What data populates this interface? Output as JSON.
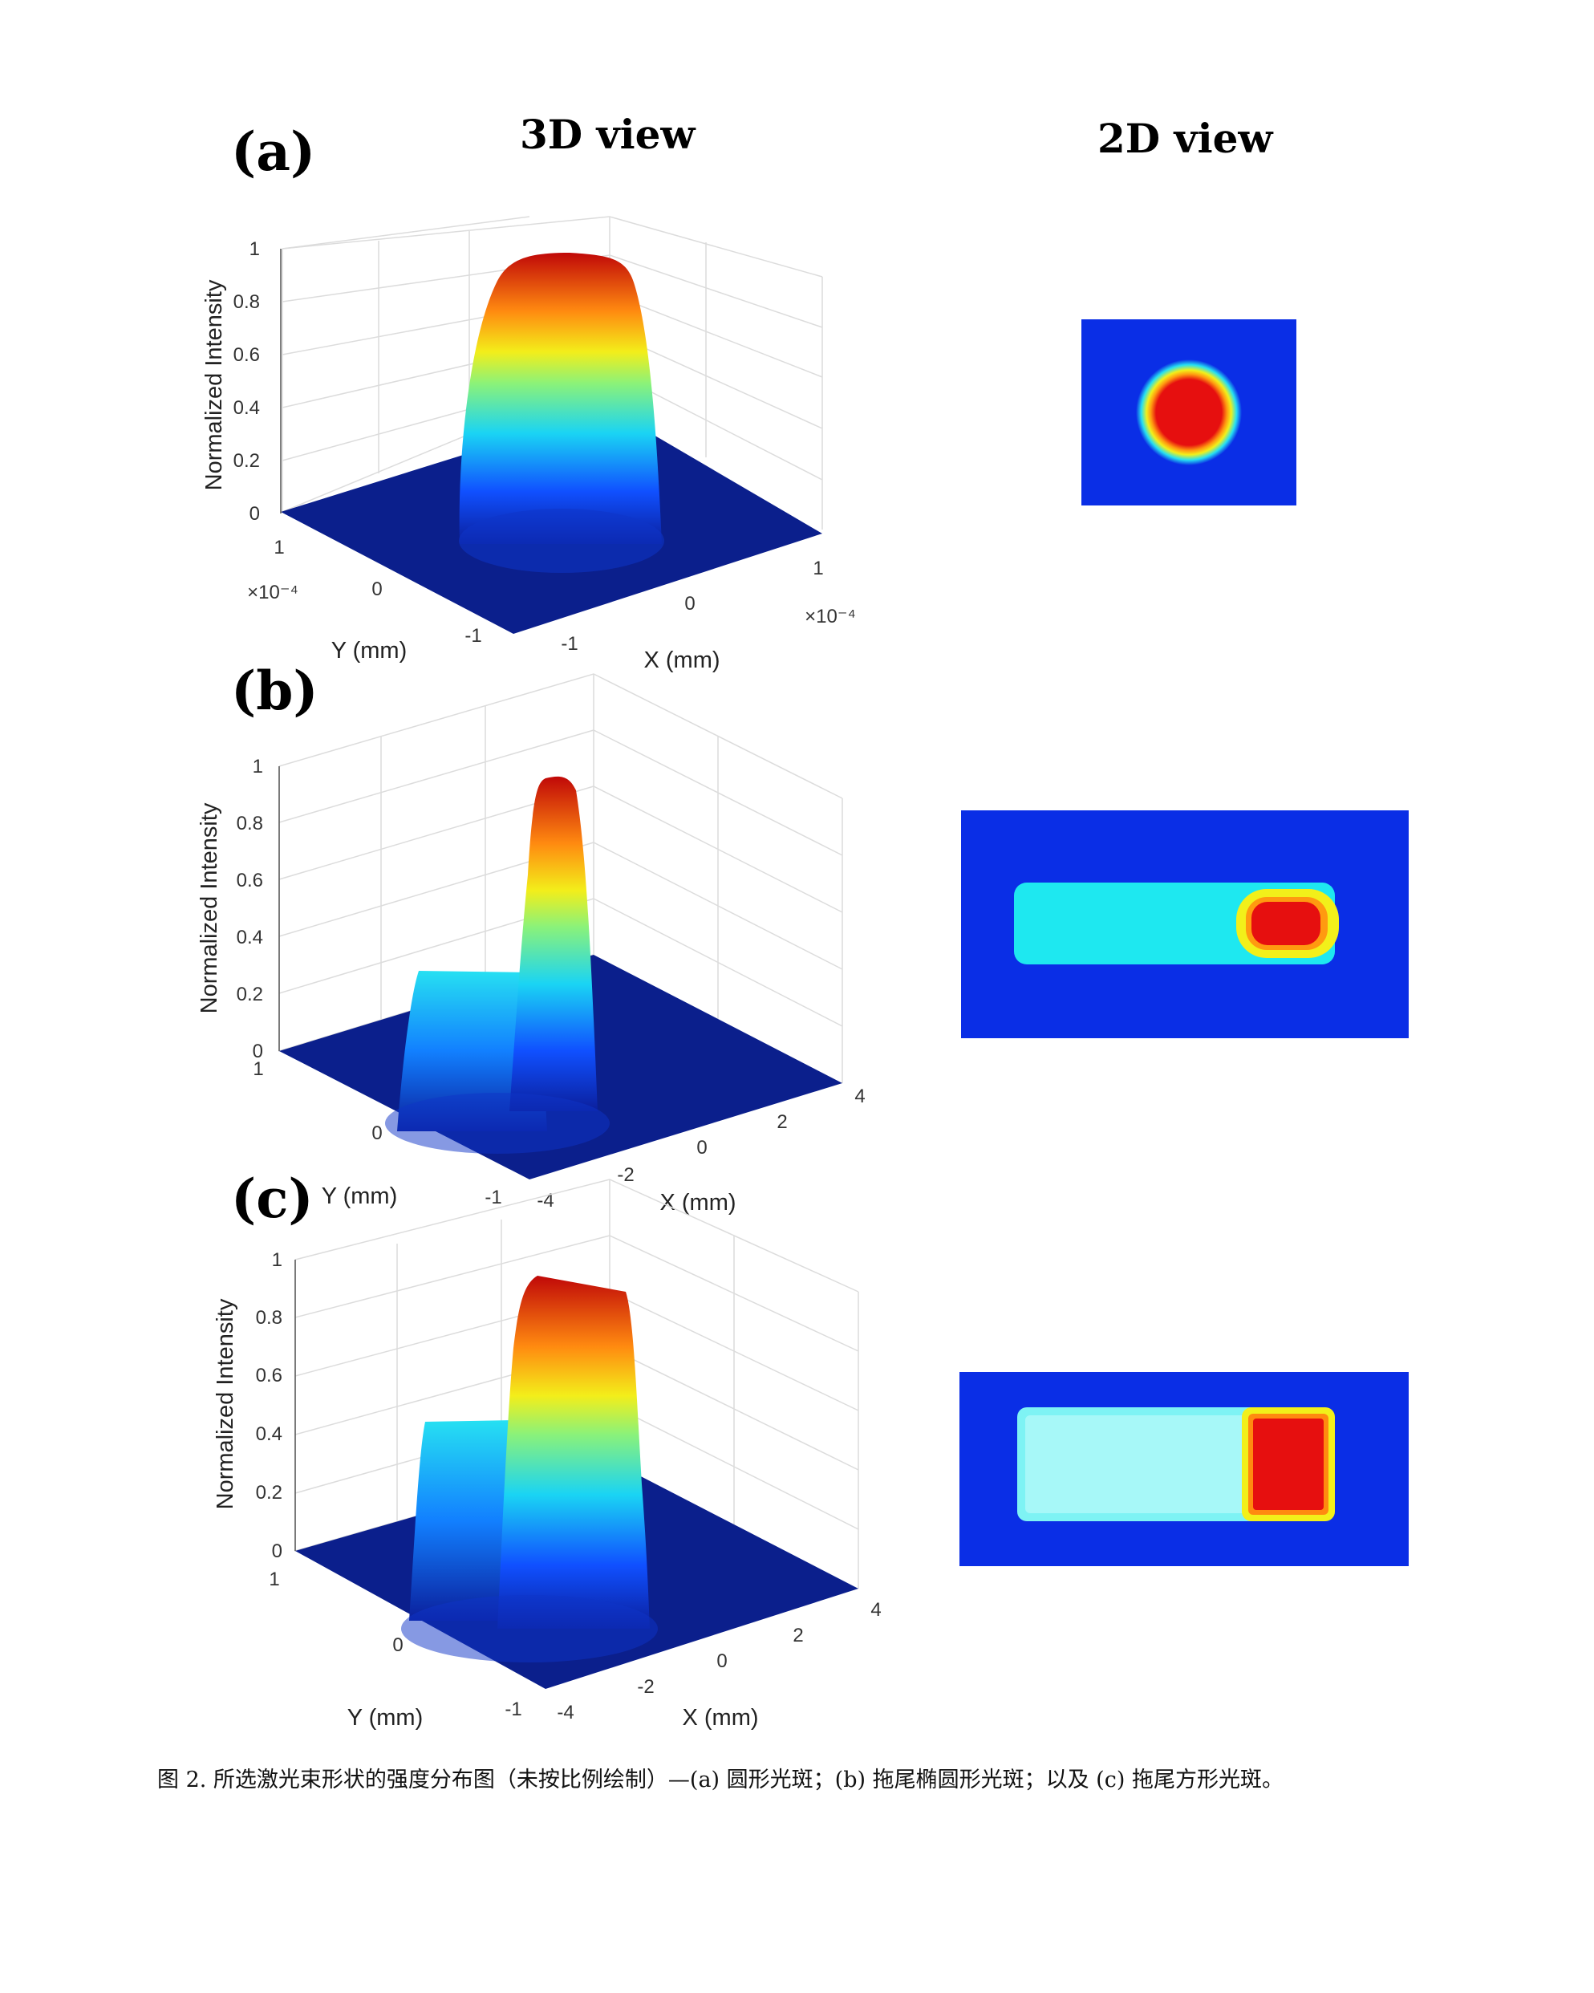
{
  "headers": {
    "view3d": "3D view",
    "view2d": "2D view"
  },
  "panels": [
    {
      "label": "(a)",
      "z_ticks": [
        "0",
        "0.2",
        "0.4",
        "0.6",
        "0.8",
        "1"
      ],
      "z_label": "Normalized Intensity",
      "y_ticks": [
        "1",
        "0",
        "-1"
      ],
      "y_exp": "×10⁻⁴",
      "y_label": "Y (mm)",
      "x_ticks": [
        "-1",
        "0",
        "1"
      ],
      "x_exp": "×10⁻⁴",
      "x_label": "X (mm)",
      "shape_2d": "circle"
    },
    {
      "label": "(b)",
      "z_ticks": [
        "0",
        "0.2",
        "0.4",
        "0.6",
        "0.8",
        "1"
      ],
      "z_label": "Normalized Intensity",
      "y_ticks": [
        "1",
        "0",
        "-1"
      ],
      "y_label": "Y (mm)",
      "x_ticks": [
        "-4",
        "-2",
        "0",
        "2",
        "4"
      ],
      "x_label": "X (mm)",
      "shape_2d": "tailed-ellipse"
    },
    {
      "label": "(c)",
      "z_ticks": [
        "0",
        "0.2",
        "0.4",
        "0.6",
        "0.8",
        "1"
      ],
      "z_label": "Normalized Intensity",
      "y_ticks": [
        "1",
        "0",
        "-1"
      ],
      "y_label": "Y (mm)",
      "x_ticks": [
        "-4",
        "-2",
        "0",
        "2",
        "4"
      ],
      "x_label": "X (mm)",
      "shape_2d": "tailed-rectangle"
    }
  ],
  "caption": "图 2. 所选激光束形状的强度分布图（未按比例绘制）—(a) 圆形光斑；(b) 拖尾椭圆形光斑；以及 (c) 拖尾方形光斑。",
  "colors": {
    "background_blue": "#0a2ee6",
    "floor_navy": "#0b1f8c",
    "cyan": "#26e0f2",
    "yellow": "#f2f01a",
    "red": "#e60f0f"
  }
}
